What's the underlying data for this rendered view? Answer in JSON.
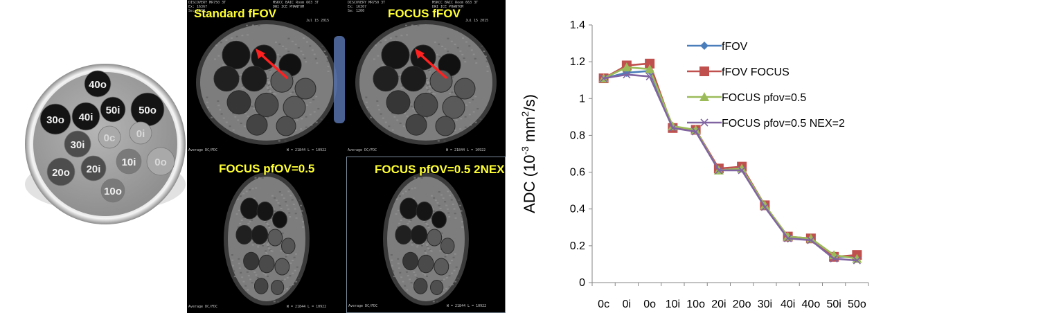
{
  "phantom": {
    "vials": [
      {
        "label": "40o",
        "shade": "dark"
      },
      {
        "label": "50i",
        "shade": "dark"
      },
      {
        "label": "50o",
        "shade": "dark"
      },
      {
        "label": "30o",
        "shade": "dark"
      },
      {
        "label": "40i",
        "shade": "dark"
      },
      {
        "label": "0c",
        "shade": "light"
      },
      {
        "label": "0i",
        "shade": "light"
      },
      {
        "label": "30i",
        "shade": "mid"
      },
      {
        "label": "0o",
        "shade": "light"
      },
      {
        "label": "10i",
        "shade": "lightmid"
      },
      {
        "label": "20i",
        "shade": "mid"
      },
      {
        "label": "20o",
        "shade": "mid"
      },
      {
        "label": "10o",
        "shade": "lightmid"
      }
    ]
  },
  "mri": {
    "panels": [
      {
        "label": "Standard fFOV"
      },
      {
        "label": "FOCUS fFOV"
      },
      {
        "label": "FOCUS pfOV=0.5"
      },
      {
        "label": "FOCUS pfOV=0.5 2NEX"
      }
    ],
    "meta_left": "DISCOVERY MR750 3T\nEx: 16367\nSe: 1200",
    "meta_right": "MSKCC BAIC Room 663 3T\nDWI ICE PHANTOM",
    "meta_date": "Jul 15 2015",
    "meta_footer": "Average DC/FDC",
    "meta_wl": "W = 21844 L = 10922"
  },
  "chart_data": {
    "type": "line",
    "categories": [
      "0c",
      "0i",
      "0o",
      "10i",
      "10o",
      "20i",
      "20o",
      "30i",
      "40i",
      "40o",
      "50i",
      "50o"
    ],
    "ylabel_main": "ADC (10",
    "ylabel_sup": "-3",
    "ylabel_unit": " mm",
    "ylabel_sup2": "2",
    "ylabel_end": "/s)",
    "ylim": [
      0,
      1.4
    ],
    "yticks": [
      0,
      0.2,
      0.4,
      0.6,
      0.8,
      1,
      1.2,
      1.4
    ],
    "ytick_labels": [
      "0",
      "0.2",
      "0.4",
      "0.6",
      "0.8",
      "1",
      "1.2",
      "1.4"
    ],
    "grid": false,
    "legend_position": "top-right",
    "series": [
      {
        "name": "fFOV",
        "color": "#4a7ebb",
        "marker": "diamond",
        "values": [
          1.11,
          1.14,
          1.15,
          0.84,
          0.83,
          0.61,
          0.62,
          0.42,
          0.24,
          0.24,
          0.14,
          0.14
        ]
      },
      {
        "name": "fFOV FOCUS",
        "color": "#c0504d",
        "marker": "square",
        "values": [
          1.11,
          1.18,
          1.19,
          0.84,
          0.83,
          0.62,
          0.63,
          0.42,
          0.25,
          0.24,
          0.14,
          0.15
        ]
      },
      {
        "name": "FOCUS pfov=0.5",
        "color": "#9bbb59",
        "marker": "triangle",
        "values": [
          1.11,
          1.17,
          1.16,
          0.85,
          0.83,
          0.61,
          0.62,
          0.42,
          0.25,
          0.24,
          0.15,
          0.13
        ]
      },
      {
        "name": "FOCUS pfov=0.5 NEX=2",
        "color": "#8064a2",
        "marker": "x",
        "values": [
          1.11,
          1.13,
          1.12,
          0.84,
          0.82,
          0.61,
          0.61,
          0.41,
          0.24,
          0.23,
          0.13,
          0.12
        ]
      }
    ]
  }
}
